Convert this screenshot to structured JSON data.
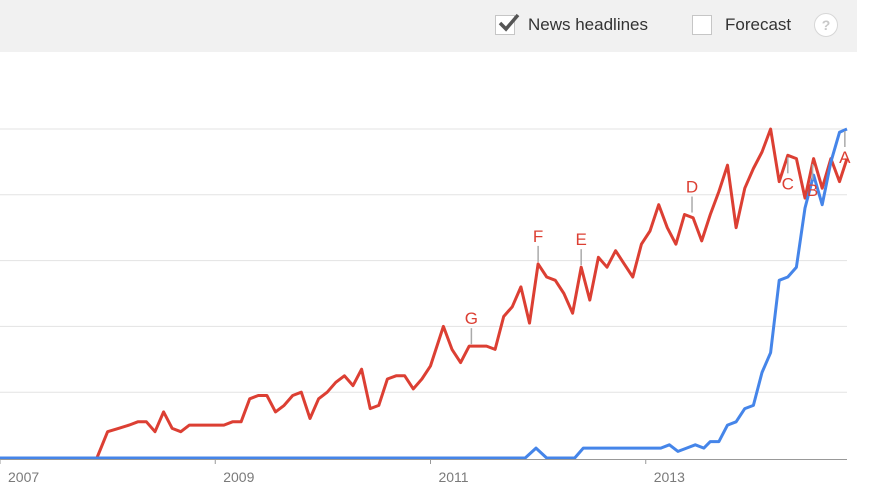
{
  "toolbar": {
    "news_label": "News headlines",
    "news_checked": true,
    "forecast_label": "Forecast",
    "forecast_checked": false,
    "help_label": "?"
  },
  "chart_data": {
    "type": "line",
    "xlim": [
      2007.0,
      2014.87
    ],
    "ylim": [
      0,
      100
    ],
    "grid": true,
    "x_ticks": [
      {
        "value": 2007,
        "label": "2007"
      },
      {
        "value": 2009,
        "label": "2009"
      },
      {
        "value": 2011,
        "label": "2011"
      },
      {
        "value": 2013,
        "label": "2013"
      }
    ],
    "series": [
      {
        "color": "#dc3f33",
        "points": [
          [
            2007.0,
            0
          ],
          [
            2007.5,
            0
          ],
          [
            2007.9,
            0
          ],
          [
            2008.0,
            8
          ],
          [
            2008.1,
            9
          ],
          [
            2008.2,
            10
          ],
          [
            2008.28,
            11
          ],
          [
            2008.36,
            11
          ],
          [
            2008.44,
            8
          ],
          [
            2008.52,
            14
          ],
          [
            2008.6,
            9
          ],
          [
            2008.68,
            8
          ],
          [
            2008.76,
            10
          ],
          [
            2008.84,
            10
          ],
          [
            2008.92,
            10
          ],
          [
            2009.0,
            10
          ],
          [
            2009.08,
            10
          ],
          [
            2009.16,
            11
          ],
          [
            2009.24,
            11
          ],
          [
            2009.32,
            18
          ],
          [
            2009.4,
            19
          ],
          [
            2009.48,
            19
          ],
          [
            2009.56,
            14
          ],
          [
            2009.64,
            16
          ],
          [
            2009.72,
            19
          ],
          [
            2009.8,
            20
          ],
          [
            2009.88,
            12
          ],
          [
            2009.96,
            18
          ],
          [
            2010.04,
            20
          ],
          [
            2010.12,
            23
          ],
          [
            2010.2,
            25
          ],
          [
            2010.28,
            22
          ],
          [
            2010.36,
            27
          ],
          [
            2010.44,
            15
          ],
          [
            2010.52,
            16
          ],
          [
            2010.6,
            24
          ],
          [
            2010.68,
            25
          ],
          [
            2010.76,
            25
          ],
          [
            2010.84,
            21
          ],
          [
            2010.92,
            24
          ],
          [
            2011.0,
            28
          ],
          [
            2011.12,
            40
          ],
          [
            2011.2,
            33
          ],
          [
            2011.28,
            29
          ],
          [
            2011.36,
            34
          ],
          [
            2011.44,
            34
          ],
          [
            2011.52,
            34
          ],
          [
            2011.6,
            33
          ],
          [
            2011.68,
            43
          ],
          [
            2011.76,
            46
          ],
          [
            2011.84,
            52
          ],
          [
            2011.92,
            41
          ],
          [
            2012.0,
            59
          ],
          [
            2012.08,
            55
          ],
          [
            2012.16,
            54
          ],
          [
            2012.24,
            50
          ],
          [
            2012.32,
            44
          ],
          [
            2012.4,
            58
          ],
          [
            2012.48,
            48
          ],
          [
            2012.56,
            61
          ],
          [
            2012.64,
            58
          ],
          [
            2012.72,
            63
          ],
          [
            2012.8,
            59
          ],
          [
            2012.88,
            55
          ],
          [
            2012.96,
            65
          ],
          [
            2013.04,
            69
          ],
          [
            2013.12,
            77
          ],
          [
            2013.2,
            70
          ],
          [
            2013.28,
            65
          ],
          [
            2013.36,
            74
          ],
          [
            2013.44,
            73
          ],
          [
            2013.52,
            66
          ],
          [
            2013.6,
            74
          ],
          [
            2013.68,
            81
          ],
          [
            2013.76,
            89
          ],
          [
            2013.84,
            70
          ],
          [
            2013.92,
            82
          ],
          [
            2014.0,
            88
          ],
          [
            2014.08,
            93
          ],
          [
            2014.16,
            100
          ],
          [
            2014.24,
            84
          ],
          [
            2014.32,
            92
          ],
          [
            2014.4,
            91
          ],
          [
            2014.48,
            79
          ],
          [
            2014.56,
            91
          ],
          [
            2014.64,
            82
          ],
          [
            2014.72,
            91
          ],
          [
            2014.8,
            84
          ],
          [
            2014.87,
            91
          ]
        ]
      },
      {
        "color": "#4585e9",
        "points": [
          [
            2007.0,
            0
          ],
          [
            2011.88,
            0
          ],
          [
            2011.98,
            3
          ],
          [
            2012.08,
            0
          ],
          [
            2012.34,
            0
          ],
          [
            2012.42,
            3
          ],
          [
            2012.5,
            3
          ],
          [
            2012.58,
            3
          ],
          [
            2012.66,
            3
          ],
          [
            2012.74,
            3
          ],
          [
            2012.82,
            3
          ],
          [
            2012.9,
            3
          ],
          [
            2012.98,
            3
          ],
          [
            2013.06,
            3
          ],
          [
            2013.14,
            3
          ],
          [
            2013.22,
            4
          ],
          [
            2013.3,
            2
          ],
          [
            2013.38,
            3
          ],
          [
            2013.46,
            4
          ],
          [
            2013.54,
            3
          ],
          [
            2013.6,
            5
          ],
          [
            2013.68,
            5
          ],
          [
            2013.76,
            10
          ],
          [
            2013.84,
            11
          ],
          [
            2013.92,
            15
          ],
          [
            2014.0,
            16
          ],
          [
            2014.08,
            26
          ],
          [
            2014.16,
            32
          ],
          [
            2014.24,
            54
          ],
          [
            2014.32,
            55
          ],
          [
            2014.4,
            58
          ],
          [
            2014.48,
            76
          ],
          [
            2014.56,
            86
          ],
          [
            2014.64,
            77
          ],
          [
            2014.72,
            90
          ],
          [
            2014.8,
            99
          ],
          [
            2014.87,
            100
          ]
        ]
      }
    ],
    "annotations": [
      {
        "letter": "G",
        "x": 2011.38,
        "y": 34,
        "color": "#dc3f33",
        "label_side": "above"
      },
      {
        "letter": "F",
        "x": 2012.0,
        "y": 59,
        "color": "#dc3f33",
        "label_side": "above"
      },
      {
        "letter": "E",
        "x": 2012.4,
        "y": 58,
        "color": "#dc3f33",
        "label_side": "above"
      },
      {
        "letter": "D",
        "x": 2013.43,
        "y": 74,
        "color": "#dc3f33",
        "label_side": "above"
      },
      {
        "letter": "C",
        "x": 2014.32,
        "y": 92,
        "color": "#dc3f33",
        "label_side": "below"
      },
      {
        "letter": "B",
        "x": 2014.55,
        "y": 90,
        "color": "#dc3f33",
        "label_side": "below"
      },
      {
        "letter": "A",
        "x": 2014.85,
        "y": 100,
        "color": "#4585e9",
        "label_side": "below"
      }
    ]
  }
}
